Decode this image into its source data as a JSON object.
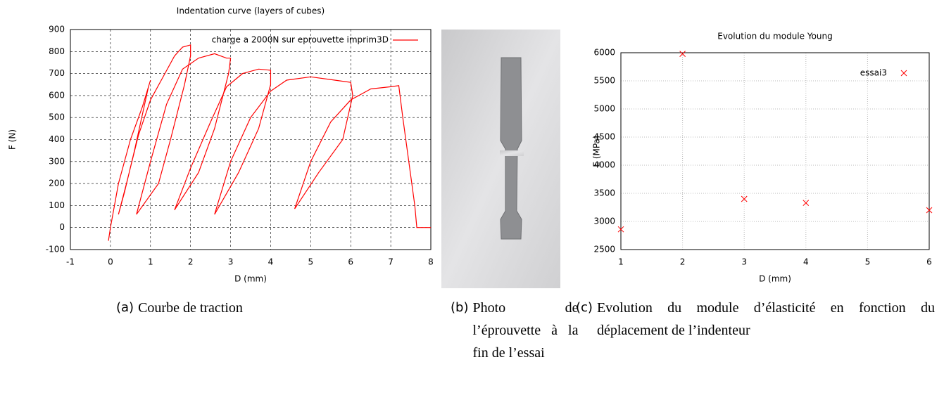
{
  "chart_data": [
    {
      "type": "line",
      "title": "Indentation curve (layers of cubes)",
      "xlabel": "D (mm)",
      "ylabel": "F (N)",
      "xlim": [
        -1,
        8
      ],
      "ylim": [
        -100,
        900
      ],
      "xticks": [
        -1,
        0,
        1,
        2,
        3,
        4,
        5,
        6,
        7,
        8
      ],
      "yticks": [
        -100,
        0,
        100,
        200,
        300,
        400,
        500,
        600,
        700,
        800,
        900
      ],
      "grid": true,
      "legend": "upper right",
      "series": [
        {
          "name": "charge a 2000N sur eprouvette imprim3D",
          "color": "#ff0000",
          "x": [
            -0.05,
            0,
            0.2,
            0.5,
            0.8,
            1.0,
            0.95,
            0.6,
            0.35,
            0.2,
            0.4,
            0.7,
            1.0,
            1.3,
            1.6,
            1.8,
            2.0,
            2.0,
            1.85,
            1.5,
            1.2,
            0.65,
            1.0,
            1.4,
            1.8,
            2.2,
            2.6,
            2.9,
            3.0,
            2.95,
            2.6,
            2.2,
            1.6,
            2.0,
            2.5,
            2.9,
            3.3,
            3.7,
            4.0,
            4.0,
            3.7,
            3.2,
            2.6,
            3.0,
            3.5,
            4.0,
            4.4,
            5.0,
            5.6,
            6.0,
            6.05,
            5.8,
            5.2,
            4.6,
            5.0,
            5.5,
            6.0,
            6.5,
            7.0,
            7.2,
            7.3,
            7.6,
            7.65,
            8.0
          ],
          "values": [
            -60,
            0,
            200,
            400,
            550,
            670,
            640,
            350,
            160,
            60,
            200,
            420,
            580,
            680,
            780,
            820,
            830,
            780,
            650,
            400,
            200,
            60,
            300,
            560,
            720,
            770,
            790,
            770,
            770,
            700,
            450,
            250,
            80,
            270,
            480,
            640,
            700,
            720,
            715,
            650,
            450,
            250,
            60,
            300,
            500,
            620,
            670,
            685,
            670,
            660,
            600,
            400,
            250,
            85,
            300,
            480,
            580,
            630,
            640,
            645,
            500,
            100,
            0,
            0
          ]
        }
      ]
    },
    {
      "type": "scatter",
      "title": "Evolution du module Young",
      "xlabel": "D (mm)",
      "ylabel": "E (MPa)",
      "xlim": [
        1,
        6
      ],
      "ylim": [
        2500,
        6000
      ],
      "xticks": [
        1,
        2,
        3,
        4,
        5,
        6
      ],
      "yticks": [
        2500,
        3000,
        3500,
        4000,
        4500,
        5000,
        5500,
        6000
      ],
      "grid": true,
      "legend": "upper right",
      "series": [
        {
          "name": "essai3",
          "color": "#ff0000",
          "x": [
            1,
            2,
            3,
            4,
            6
          ],
          "values": [
            2860,
            5980,
            3400,
            3330,
            3200
          ]
        }
      ]
    }
  ],
  "captions": [
    {
      "label": "(a)",
      "text": "Courbe de traction"
    },
    {
      "label": "(b)",
      "text": "Photo de l’éprouvette à la fin de l’essai"
    },
    {
      "label": "(c)",
      "text": "Evolution du module d’élasticité en fonction du déplacement de l’indenteur"
    }
  ]
}
